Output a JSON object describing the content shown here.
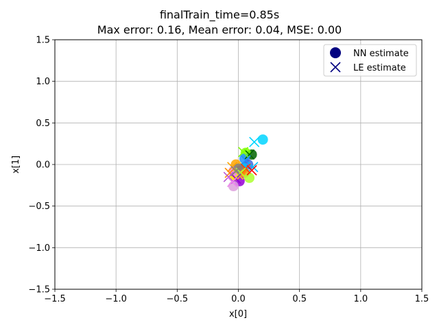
{
  "chart_data": {
    "type": "scatter",
    "title_lines": [
      "finalTrain_time=0.85s",
      "Max error: 0.16, Mean error: 0.04, MSE: 0.00"
    ],
    "xlabel": "x[0]",
    "ylabel": "x[1]",
    "xlim": [
      -1.5,
      1.5
    ],
    "ylim": [
      -1.5,
      1.5
    ],
    "xticks": [
      {
        "v": -1.5,
        "label": "−1.5"
      },
      {
        "v": -1.0,
        "label": "−1.0"
      },
      {
        "v": -0.5,
        "label": "−0.5"
      },
      {
        "v": 0.0,
        "label": "0.0"
      },
      {
        "v": 0.5,
        "label": "0.5"
      },
      {
        "v": 1.0,
        "label": "1.0"
      },
      {
        "v": 1.5,
        "label": "1.5"
      }
    ],
    "yticks": [
      {
        "v": -1.5,
        "label": "−1.5"
      },
      {
        "v": -1.0,
        "label": "−1.0"
      },
      {
        "v": -0.5,
        "label": "−0.5"
      },
      {
        "v": 0.0,
        "label": "0.0"
      },
      {
        "v": 0.5,
        "label": "0.5"
      },
      {
        "v": 1.0,
        "label": "1.0"
      },
      {
        "v": 1.5,
        "label": "1.5"
      }
    ],
    "grid": true,
    "legend": {
      "placement": "top-right",
      "entries": [
        {
          "label": "NN estimate",
          "marker": "circle",
          "color": "#000080"
        },
        {
          "label": "LE estimate",
          "marker": "x",
          "color": "#000080"
        }
      ]
    },
    "series": [
      {
        "name": "NN estimate",
        "marker": "circle",
        "points": [
          {
            "x": 0.2,
            "y": 0.3,
            "color": "#00d5ff"
          },
          {
            "x": 0.11,
            "y": 0.12,
            "color": "#006400"
          },
          {
            "x": 0.06,
            "y": 0.14,
            "color": "#7fff00"
          },
          {
            "x": 0.05,
            "y": 0.07,
            "color": "#1e90ff"
          },
          {
            "x": 0.08,
            "y": 0.0,
            "color": "#4169e1"
          },
          {
            "x": 0.04,
            "y": -0.04,
            "color": "#00bfff"
          },
          {
            "x": -0.02,
            "y": 0.0,
            "color": "#ffa500"
          },
          {
            "x": 0.02,
            "y": -0.07,
            "color": "#ff4500"
          },
          {
            "x": 0.05,
            "y": -0.1,
            "color": "#ff8c00"
          },
          {
            "x": 0.09,
            "y": -0.16,
            "color": "#adff2f"
          },
          {
            "x": 0.01,
            "y": -0.2,
            "color": "#9400d3"
          },
          {
            "x": -0.03,
            "y": -0.13,
            "color": "#ffd700"
          },
          {
            "x": -0.04,
            "y": -0.08,
            "color": "#ee82ee"
          },
          {
            "x": -0.04,
            "y": -0.26,
            "color": "#dda0dd"
          },
          {
            "x": 0.0,
            "y": -0.05,
            "color": "#808080"
          }
        ]
      },
      {
        "name": "LE estimate",
        "marker": "x",
        "points": [
          {
            "x": 0.13,
            "y": 0.27,
            "color": "#00d5ff"
          },
          {
            "x": 0.09,
            "y": 0.12,
            "color": "#006400"
          },
          {
            "x": 0.04,
            "y": 0.15,
            "color": "#7fff00"
          },
          {
            "x": 0.06,
            "y": 0.05,
            "color": "#1e90ff"
          },
          {
            "x": 0.12,
            "y": -0.03,
            "color": "#00bfff"
          },
          {
            "x": 0.11,
            "y": -0.07,
            "color": "#ff0000"
          },
          {
            "x": 0.06,
            "y": -0.05,
            "color": "#ff4500"
          },
          {
            "x": -0.05,
            "y": -0.03,
            "color": "#ffa500"
          },
          {
            "x": -0.07,
            "y": -0.1,
            "color": "#ff8c00"
          },
          {
            "x": 0.0,
            "y": -0.12,
            "color": "#ffd700"
          },
          {
            "x": 0.02,
            "y": -0.1,
            "color": "#adff2f"
          },
          {
            "x": -0.02,
            "y": -0.17,
            "color": "#9400d3"
          },
          {
            "x": -0.08,
            "y": -0.15,
            "color": "#ba55d3"
          },
          {
            "x": -0.05,
            "y": -0.21,
            "color": "#ee82ee"
          },
          {
            "x": -0.02,
            "y": -0.08,
            "color": "#808080"
          }
        ]
      }
    ]
  }
}
